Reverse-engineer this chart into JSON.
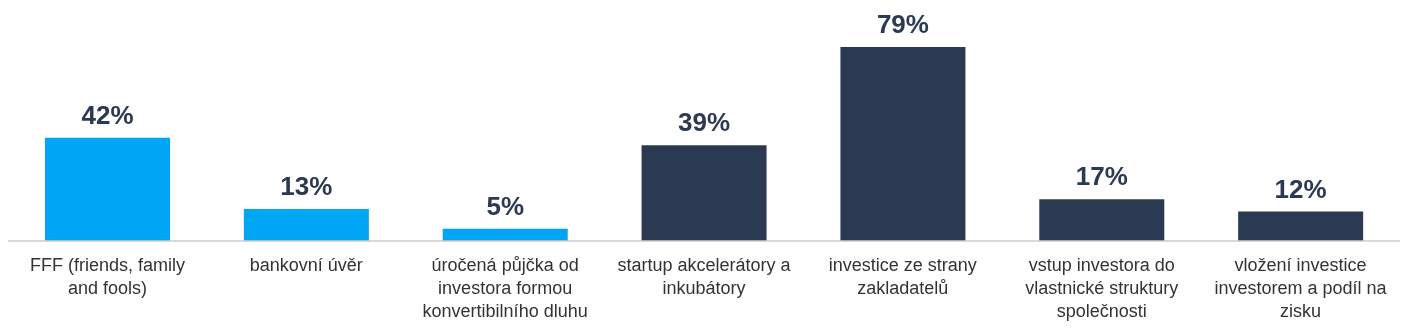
{
  "chart_data": {
    "type": "bar",
    "categories": [
      "FFF (friends, family and fools)",
      "bankovní úvěr",
      "úročená půjčka od investora formou konvertibilního dluhu",
      "startup akcelerátory a inkubátory",
      "investice ze strany zakladatelů",
      "vstup investora do vlastnické struktury společnosti",
      "vložení investice investorem a podíl na zisku"
    ],
    "values": [
      42,
      13,
      5,
      39,
      79,
      17,
      12
    ],
    "value_labels": [
      "42%",
      "13%",
      "5%",
      "39%",
      "79%",
      "17%",
      "12%"
    ],
    "colors": [
      "#00a6f6",
      "#00a6f6",
      "#00a6f6",
      "#2b3a52",
      "#2b3a52",
      "#2b3a52",
      "#2b3a52"
    ],
    "grid": false,
    "legend": false
  }
}
